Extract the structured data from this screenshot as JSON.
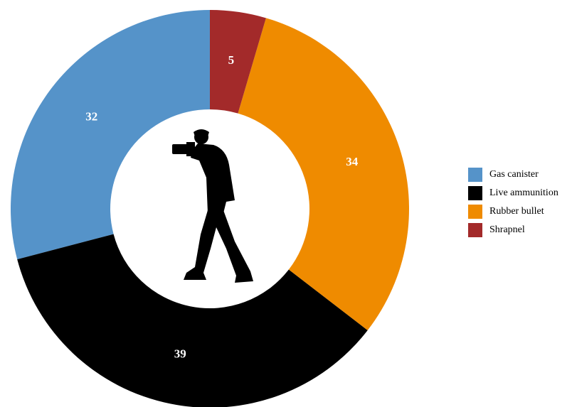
{
  "chart_data": {
    "type": "donut",
    "categories": [
      "Gas canister",
      "Live ammunition",
      "Rubber bullet",
      "Shrapnel"
    ],
    "values": [
      32,
      39,
      34,
      5
    ],
    "colors": [
      "#5593c9",
      "#000000",
      "#ef8b00",
      "#a32a2a"
    ],
    "legend": "right"
  }
}
